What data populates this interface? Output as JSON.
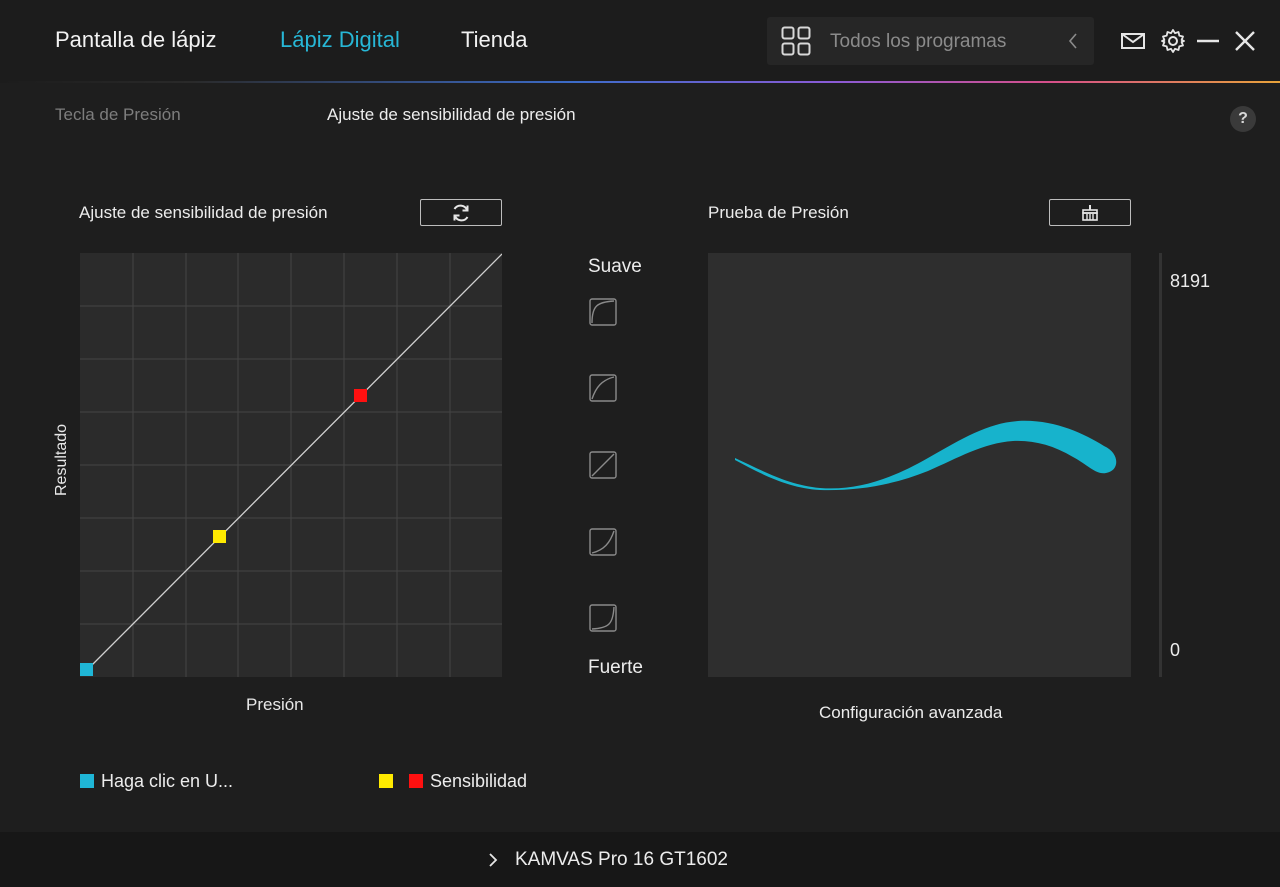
{
  "nav": {
    "tabs": [
      {
        "label": "Pantalla de lápiz"
      },
      {
        "label": "Lápiz Digital"
      },
      {
        "label": "Tienda"
      }
    ],
    "active_tab": "Lápiz Digital",
    "accent_color": "#27b7d6"
  },
  "search": {
    "label": "Todos los programas"
  },
  "window_icons": [
    "mail-icon",
    "gear-icon",
    "minimize-icon",
    "close-icon"
  ],
  "subheader": {
    "tab_pressure_key": "Tecla de Presión",
    "tab_sensitivity": "Ajuste de sensibilidad de presión",
    "help": "?"
  },
  "curve_panel": {
    "title": "Ajuste de sensibilidad de presión",
    "reset_icon": "refresh-icon",
    "ylabel": "Resultado",
    "xlabel": "Presión",
    "points": {
      "start": {
        "color": "#1fb6d6"
      },
      "low": {
        "color": "#ffea00"
      },
      "high": {
        "color": "#ff1010"
      }
    }
  },
  "presets": {
    "top_label": "Suave",
    "bottom_label": "Fuerte",
    "count": 5
  },
  "test_panel": {
    "title": "Prueba de Presión",
    "clear_icon": "clear-icon",
    "max_value": "8191",
    "min_value": "0",
    "stroke_color": "#17b3cc",
    "advanced_link": "Configuración avanzada"
  },
  "legend": {
    "item1": {
      "label": "Haga clic en U...",
      "color": "#1fb6d6"
    },
    "item2": {
      "label": "Sensibilidad",
      "colors": [
        "#ffea00",
        "#ff1010"
      ]
    }
  },
  "footer": {
    "device_name": "KAMVAS Pro 16 GT1602"
  }
}
